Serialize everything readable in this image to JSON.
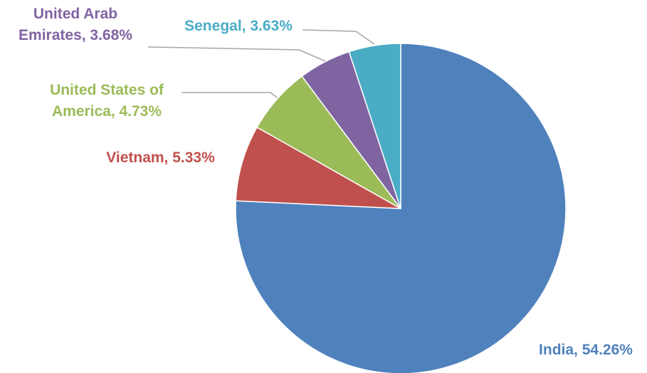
{
  "chart_data": {
    "type": "pie",
    "values": [
      54.26,
      5.33,
      4.73,
      3.68,
      3.63
    ],
    "value_labels": [
      "India, 54.26%",
      "Vietnam, 5.33%",
      "United States of America, 4.73%",
      "United Arab Emirates, 3.68%",
      "Senegal, 3.63%"
    ],
    "colors": [
      "#4f81bd",
      "#c0504d",
      "#9bbb59",
      "#8064a2",
      "#4bacc6"
    ]
  }
}
